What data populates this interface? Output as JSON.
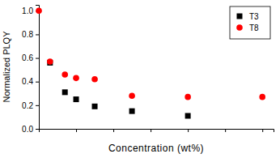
{
  "chart_data": {
    "type": "scatter",
    "x_label": "Concentration (wt%)",
    "y_label": "Normalized PLQY",
    "xlim": [
      0,
      6.3
    ],
    "xticks": [
      0,
      1,
      2,
      3,
      4,
      5,
      6
    ],
    "ylim": [
      0,
      1.05
    ],
    "yticks": [
      {
        "value": 0,
        "label": "0.0"
      },
      {
        "value": 0.2,
        "label": "0.2"
      },
      {
        "value": 0.4,
        "label": "0.4"
      },
      {
        "value": 0.6,
        "label": "0.6"
      },
      {
        "value": 0.8,
        "label": "0.8"
      },
      {
        "value": 1.0,
        "label": "1.0"
      }
    ],
    "tick_labels": "y",
    "legend": "top-right",
    "series": [
      {
        "name": "T3",
        "color": "#000000",
        "marker": "square",
        "x": [
          0.3,
          0.7,
          1.0,
          1.5,
          2.5,
          4.0
        ],
        "values": [
          0.56,
          0.31,
          0.25,
          0.19,
          0.15,
          0.11
        ]
      },
      {
        "name": "T8",
        "color": "#ff0000",
        "marker": "circle",
        "x": [
          0,
          0.3,
          0.7,
          1.0,
          1.5,
          2.5,
          4.0,
          6.0
        ],
        "values": [
          1.0,
          0.57,
          0.46,
          0.43,
          0.42,
          0.28,
          0.27,
          0.27
        ]
      }
    ]
  }
}
